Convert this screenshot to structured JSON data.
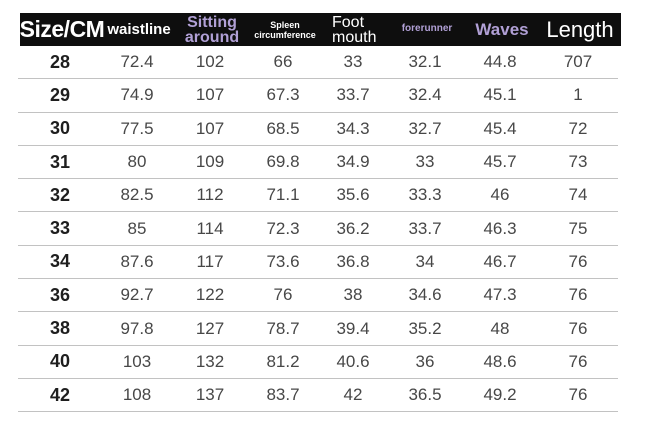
{
  "colors": {
    "header_bg": "#0e0e0e",
    "header_text": "#ffffff",
    "accent_lavender": "#b1a0d6",
    "row_text": "#474747",
    "size_column_text": "#1e1e1e",
    "divider": "#c2c2c2",
    "page_bg": "#ffffff"
  },
  "chart_data": {
    "type": "table",
    "title": "Size/CM garment measurement chart",
    "columns": [
      {
        "label": "Size/CM",
        "lines": [
          "Size/CM"
        ]
      },
      {
        "label": "waistline",
        "lines": [
          "waistline"
        ]
      },
      {
        "label": "Sitting around",
        "lines": [
          "Sitting",
          "around"
        ]
      },
      {
        "label": "Spleen circumference",
        "lines": [
          "Spleen",
          "circumference"
        ]
      },
      {
        "label": "Foot mouth",
        "lines": [
          "Foot",
          "mouth"
        ]
      },
      {
        "label": "forerunner",
        "lines": [
          "forerunner"
        ]
      },
      {
        "label": "Waves",
        "lines": [
          "Waves"
        ]
      },
      {
        "label": "Length",
        "lines": [
          "Length"
        ]
      }
    ],
    "rows": [
      [
        "28",
        "72.4",
        "102",
        "66",
        "33",
        "32.1",
        "44.8",
        "707"
      ],
      [
        "29",
        "74.9",
        "107",
        "67.3",
        "33.7",
        "32.4",
        "45.1",
        "1"
      ],
      [
        "30",
        "77.5",
        "107",
        "68.5",
        "34.3",
        "32.7",
        "45.4",
        "72"
      ],
      [
        "31",
        "80",
        "109",
        "69.8",
        "34.9",
        "33",
        "45.7",
        "73"
      ],
      [
        "32",
        "82.5",
        "112",
        "71.1",
        "35.6",
        "33.3",
        "46",
        "74"
      ],
      [
        "33",
        "85",
        "114",
        "72.3",
        "36.2",
        "33.7",
        "46.3",
        "75"
      ],
      [
        "34",
        "87.6",
        "117",
        "73.6",
        "36.8",
        "34",
        "46.7",
        "76"
      ],
      [
        "36",
        "92.7",
        "122",
        "76",
        "38",
        "34.6",
        "47.3",
        "76"
      ],
      [
        "38",
        "97.8",
        "127",
        "78.7",
        "39.4",
        "35.2",
        "48",
        "76"
      ],
      [
        "40",
        "103",
        "132",
        "81.2",
        "40.6",
        "36",
        "48.6",
        "76"
      ],
      [
        "42",
        "108",
        "137",
        "83.7",
        "42",
        "36.5",
        "49.2",
        "76"
      ]
    ]
  }
}
